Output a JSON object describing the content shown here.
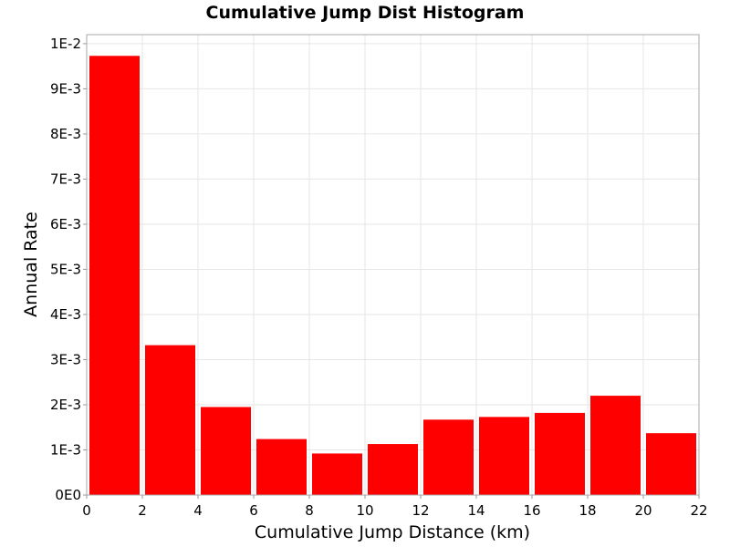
{
  "chart_data": {
    "type": "bar",
    "title": "Cumulative Jump Dist Histogram",
    "xlabel": "Cumulative Jump Distance (km)",
    "ylabel": "Annual Rate",
    "xlim": [
      0,
      22
    ],
    "ylim": [
      0,
      0.0102
    ],
    "bin_width": 2,
    "x_ticks": [
      0,
      2,
      4,
      6,
      8,
      10,
      12,
      14,
      16,
      18,
      20,
      22
    ],
    "x_tick_labels": [
      "0",
      "2",
      "4",
      "6",
      "8",
      "10",
      "12",
      "14",
      "16",
      "18",
      "20",
      "22"
    ],
    "y_ticks": [
      0,
      0.001,
      0.002,
      0.003,
      0.004,
      0.005,
      0.006,
      0.007,
      0.008,
      0.009,
      0.01
    ],
    "y_tick_labels": [
      "0E0",
      "1E-3",
      "2E-3",
      "3E-3",
      "4E-3",
      "5E-3",
      "6E-3",
      "7E-3",
      "8E-3",
      "9E-3",
      "1E-2"
    ],
    "bins": [
      {
        "x_start": 0,
        "x_end": 2,
        "value": 0.00973
      },
      {
        "x_start": 2,
        "x_end": 4,
        "value": 0.00332
      },
      {
        "x_start": 4,
        "x_end": 6,
        "value": 0.00195
      },
      {
        "x_start": 6,
        "x_end": 8,
        "value": 0.00124
      },
      {
        "x_start": 8,
        "x_end": 10,
        "value": 0.00092
      },
      {
        "x_start": 10,
        "x_end": 12,
        "value": 0.00113
      },
      {
        "x_start": 12,
        "x_end": 14,
        "value": 0.00167
      },
      {
        "x_start": 14,
        "x_end": 16,
        "value": 0.00173
      },
      {
        "x_start": 16,
        "x_end": 18,
        "value": 0.00182
      },
      {
        "x_start": 18,
        "x_end": 20,
        "value": 0.0022
      },
      {
        "x_start": 20,
        "x_end": 22,
        "value": 0.00137
      }
    ],
    "bar_color": "#ff0000",
    "grid": true,
    "legend": "none"
  }
}
